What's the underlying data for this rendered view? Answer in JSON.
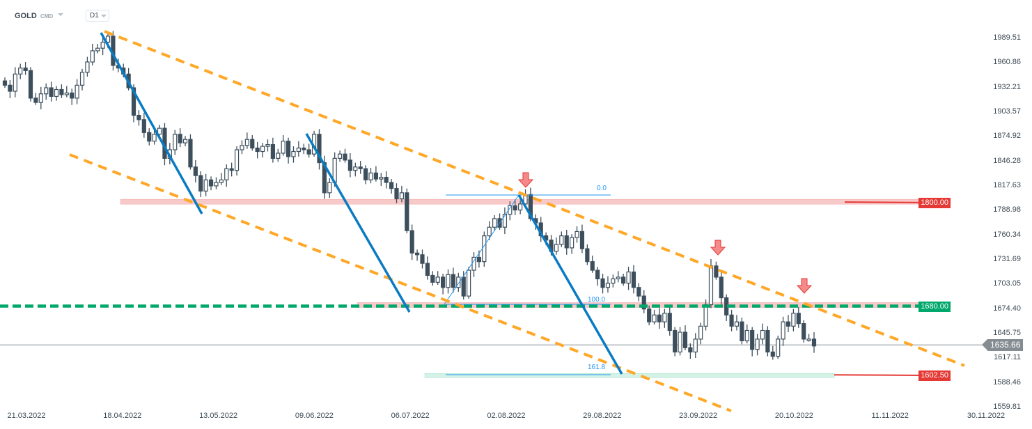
{
  "header": {
    "symbol": "GOLD",
    "market": "CMD",
    "timeframe": "D1"
  },
  "chart_data": {
    "type": "candlestick",
    "title": "",
    "y_ticks": [
      "1989.51",
      "1960.86",
      "1932.21",
      "1903.57",
      "1874.92",
      "1846.28",
      "1817.63",
      "1788.98",
      "1760.34",
      "1731.69",
      "1703.05",
      "1674.40",
      "1645.75",
      "1617.11",
      "1588.46",
      "1559.81"
    ],
    "ylim": [
      1559.81,
      1989.51
    ],
    "x_ticks": [
      "21.03.2022",
      "18.04.2022",
      "13.05.2022",
      "09.06.2022",
      "06.07.2022",
      "02.08.2022",
      "29.08.2022",
      "23.09.2022",
      "20.10.2022",
      "11.11.2022",
      "30.11.2022"
    ],
    "close": [
      1935,
      1928,
      1948,
      1955,
      1952,
      1920,
      1915,
      1925,
      1932,
      1922,
      1930,
      1924,
      1926,
      1920,
      1935,
      1950,
      1962,
      1975,
      1978,
      1985,
      1992,
      1958,
      1955,
      1948,
      1932,
      1900,
      1895,
      1880,
      1870,
      1878,
      1885,
      1850,
      1860,
      1878,
      1868,
      1872,
      1840,
      1830,
      1812,
      1825,
      1818,
      1822,
      1825,
      1838,
      1836,
      1860,
      1865,
      1872,
      1862,
      1858,
      1864,
      1866,
      1850,
      1856,
      1870,
      1852,
      1858,
      1862,
      1860,
      1855,
      1878,
      1845,
      1810,
      1822,
      1850,
      1855,
      1848,
      1836,
      1840,
      1838,
      1825,
      1833,
      1826,
      1828,
      1822,
      1815,
      1803,
      1810,
      1766,
      1740,
      1738,
      1728,
      1714,
      1706,
      1712,
      1700,
      1715,
      1700,
      1712,
      1690,
      1720,
      1735,
      1730,
      1760,
      1770,
      1780,
      1770,
      1785,
      1795,
      1790,
      1797,
      1808,
      1780,
      1775,
      1760,
      1755,
      1742,
      1750,
      1760,
      1746,
      1758,
      1765,
      1745,
      1730,
      1720,
      1710,
      1700,
      1705,
      1710,
      1712,
      1705,
      1718,
      1700,
      1690,
      1675,
      1660,
      1668,
      1660,
      1670,
      1650,
      1625,
      1648,
      1630,
      1625,
      1640,
      1655,
      1680,
      1725,
      1712,
      1688,
      1668,
      1655,
      1660,
      1638,
      1650,
      1628,
      1640,
      1650,
      1625,
      1620,
      1640,
      1660,
      1655,
      1670,
      1658,
      1640,
      1640,
      1632
    ],
    "levels": [
      {
        "label": "1800.00",
        "price": 1800.0,
        "color": "#e53935"
      },
      {
        "label": "1680.00",
        "price": 1680.0,
        "color": "#00a86b"
      },
      {
        "label": "1602.50",
        "price": 1602.5,
        "color": "#e53935"
      }
    ],
    "current_price": {
      "label": "1635.66",
      "price": 1635.66
    },
    "fibonacci": {
      "levels": [
        "0.0",
        "100.0",
        "161.8"
      ],
      "color": "#2196f3"
    },
    "colors": {
      "candle": "#3d4f5c",
      "channel": "#ffa726",
      "trend": "#0a7bc2",
      "support": "#00a86b",
      "arrow": "#ef5350"
    }
  }
}
